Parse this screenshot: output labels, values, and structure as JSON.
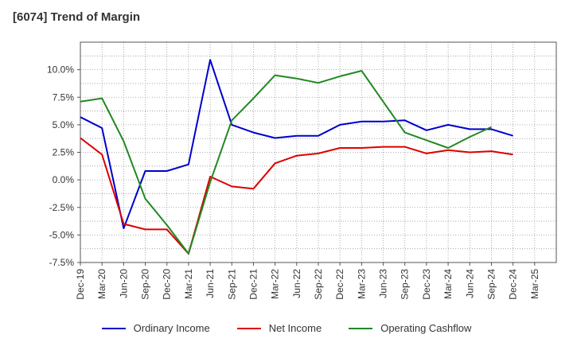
{
  "chart_data": {
    "type": "line",
    "title": "[6074]  Trend of Margin",
    "xlabel": "",
    "ylabel": "",
    "x": [
      "Dec-19",
      "Mar-20",
      "Jun-20",
      "Sep-20",
      "Dec-20",
      "Mar-21",
      "Jun-21",
      "Sep-21",
      "Dec-21",
      "Mar-22",
      "Jun-22",
      "Sep-22",
      "Dec-22",
      "Mar-23",
      "Jun-23",
      "Sep-23",
      "Dec-23",
      "Mar-24",
      "Jun-24",
      "Sep-24",
      "Dec-24",
      "Mar-25"
    ],
    "ylim": [
      -7.5,
      12.5
    ],
    "yticks": [
      -7.5,
      -5.0,
      -2.5,
      0.0,
      2.5,
      5.0,
      7.5,
      10.0
    ],
    "ytick_labels": [
      "-7.5%",
      "-5.0%",
      "-2.5%",
      "0.0%",
      "2.5%",
      "5.0%",
      "7.5%",
      "10.0%"
    ],
    "grid": true,
    "legend_position": "bottom",
    "series": [
      {
        "name": "Ordinary Income",
        "color": "#0000cc",
        "values": [
          5.7,
          4.7,
          -4.4,
          0.8,
          0.8,
          1.4,
          10.9,
          5.0,
          4.3,
          3.8,
          4.0,
          4.0,
          5.0,
          5.3,
          5.3,
          5.4,
          4.5,
          5.0,
          4.6,
          4.6,
          4.0,
          null
        ]
      },
      {
        "name": "Net Income",
        "color": "#dd0000",
        "values": [
          3.8,
          2.3,
          -4.0,
          -4.5,
          -4.5,
          -6.7,
          0.3,
          -0.6,
          -0.8,
          1.5,
          2.2,
          2.4,
          2.9,
          2.9,
          3.0,
          3.0,
          2.4,
          2.7,
          2.5,
          2.6,
          2.3,
          null
        ]
      },
      {
        "name": "Operating Cashflow",
        "color": "#228822",
        "values": [
          7.1,
          7.4,
          3.5,
          -1.7,
          -4.1,
          -6.7,
          -0.2,
          5.4,
          7.4,
          9.5,
          9.2,
          8.8,
          9.4,
          9.9,
          7.1,
          4.3,
          3.6,
          2.9,
          3.9,
          4.8,
          null,
          null
        ]
      }
    ]
  }
}
